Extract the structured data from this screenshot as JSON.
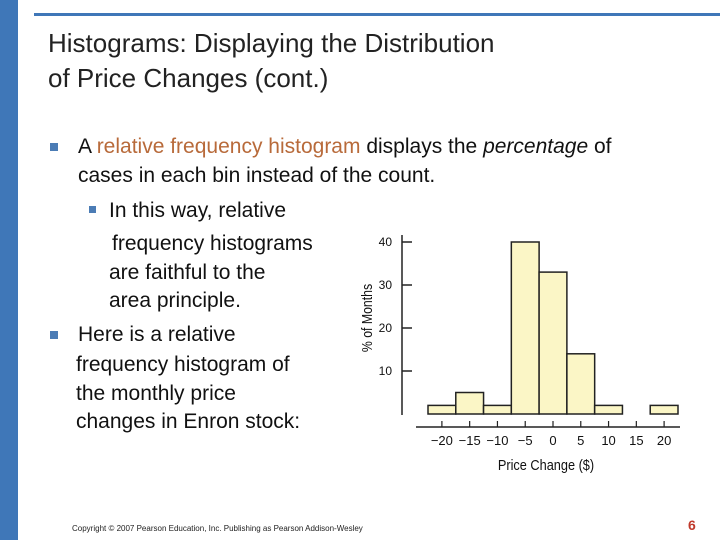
{
  "slide": {
    "title": "Histograms: Displaying the Distribution\nof Price Changes (cont.)",
    "bullet1": {
      "prefix": "A ",
      "highlight": "relative frequency histogram",
      "middle": " displays the ",
      "emph": "percentage",
      "suffix_line1": " of",
      "line2": "cases in each bin instead of the count."
    },
    "sub_bullet": [
      "In this way, relative",
      "frequency histograms",
      "are faithful to the",
      "area principle."
    ],
    "bullet2": [
      "Here is a relative",
      "frequency histogram of",
      "the monthly price",
      "changes in Enron stock:"
    ],
    "footer": "Copyright © 2007 Pearson Education, Inc. Publishing as Pearson Addison-Wesley",
    "page_number": "6"
  },
  "colors": {
    "accent": "#3f77b8",
    "highlight_text": "#b86a3a",
    "bar_fill": "#fbf6c6",
    "page_number": "#c0392b"
  },
  "chart_data": {
    "type": "bar",
    "xlabel": "Price Change ($)",
    "ylabel": "% of Months",
    "x_ticks": [
      "−20",
      "−15",
      "−10",
      "−5",
      "0",
      "5",
      "10",
      "15",
      "20"
    ],
    "y_ticks": [
      "10",
      "20",
      "30",
      "40"
    ],
    "bins": [
      {
        "start": -22.5,
        "end": -17.5,
        "value": 2
      },
      {
        "start": -17.5,
        "end": -12.5,
        "value": 5
      },
      {
        "start": -12.5,
        "end": -7.5,
        "value": 2
      },
      {
        "start": -7.5,
        "end": -2.5,
        "value": 40
      },
      {
        "start": -2.5,
        "end": 2.5,
        "value": 33
      },
      {
        "start": 2.5,
        "end": 7.5,
        "value": 14
      },
      {
        "start": 7.5,
        "end": 12.5,
        "value": 2
      },
      {
        "start": 12.5,
        "end": 17.5,
        "value": 0
      },
      {
        "start": 17.5,
        "end": 22.5,
        "value": 2
      }
    ],
    "xlim": [
      -22.5,
      22.5
    ],
    "ylim": [
      0,
      40
    ],
    "grid": false
  }
}
